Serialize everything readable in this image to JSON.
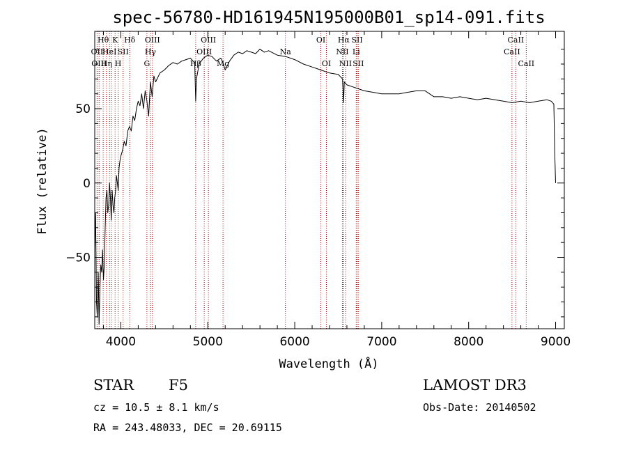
{
  "chart_data": {
    "type": "line",
    "title": "spec-56780-HD161945N195000B01_sp14-091.fits",
    "xlabel": "Wavelength (Å)",
    "ylabel": "Flux (relative)",
    "xlim": [
      3700,
      9100
    ],
    "ylim": [
      -98,
      102
    ],
    "xticks": [
      4000,
      5000,
      6000,
      7000,
      8000,
      9000
    ],
    "yticks": [
      -50,
      0,
      50
    ],
    "xtick_labels": [
      "4000",
      "5000",
      "6000",
      "7000",
      "8000",
      "9000"
    ],
    "ytick_labels": [
      "−50",
      "0",
      "50"
    ],
    "grid": false,
    "series": [
      {
        "name": "flux",
        "x": [
          3700,
          3710,
          3720,
          3730,
          3740,
          3750,
          3760,
          3770,
          3780,
          3790,
          3800,
          3810,
          3820,
          3830,
          3840,
          3850,
          3860,
          3870,
          3880,
          3890,
          3900,
          3910,
          3920,
          3930,
          3940,
          3950,
          3960,
          3970,
          3980,
          3990,
          4000,
          4020,
          4040,
          4060,
          4080,
          4100,
          4120,
          4140,
          4160,
          4180,
          4200,
          4220,
          4240,
          4260,
          4280,
          4300,
          4320,
          4340,
          4360,
          4380,
          4400,
          4450,
          4500,
          4550,
          4600,
          4650,
          4700,
          4750,
          4800,
          4830,
          4850,
          4861,
          4870,
          4900,
          4950,
          5000,
          5050,
          5100,
          5150,
          5180,
          5200,
          5250,
          5300,
          5350,
          5400,
          5450,
          5500,
          5550,
          5600,
          5650,
          5700,
          5800,
          5900,
          6000,
          6100,
          6200,
          6300,
          6400,
          6500,
          6550,
          6562,
          6570,
          6600,
          6700,
          6800,
          6900,
          7000,
          7100,
          7200,
          7300,
          7400,
          7500,
          7600,
          7700,
          7800,
          7900,
          8000,
          8100,
          8200,
          8300,
          8400,
          8500,
          8600,
          8700,
          8800,
          8900,
          8950,
          8980,
          8990,
          9000
        ],
        "y": [
          -45,
          -20,
          -80,
          -90,
          -60,
          -95,
          -70,
          -55,
          -60,
          -45,
          -65,
          -55,
          -30,
          -10,
          -5,
          -20,
          -15,
          0,
          -10,
          -25,
          -5,
          -15,
          -20,
          -10,
          -5,
          5,
          0,
          -5,
          10,
          15,
          18,
          22,
          28,
          25,
          35,
          38,
          35,
          45,
          42,
          50,
          55,
          52,
          60,
          50,
          62,
          55,
          45,
          68,
          58,
          72,
          68,
          74,
          76,
          79,
          81,
          80,
          82,
          83,
          84,
          82,
          81,
          55,
          70,
          80,
          84,
          86,
          85,
          82,
          84,
          80,
          76,
          82,
          86,
          88,
          87,
          89,
          88,
          87,
          90,
          88,
          89,
          86,
          85,
          83,
          80,
          78,
          76,
          74,
          73,
          70,
          54,
          68,
          66,
          64,
          62,
          61,
          60,
          60,
          60,
          61,
          62,
          62,
          58,
          58,
          57,
          58,
          57,
          56,
          57,
          56,
          55,
          54,
          55,
          54,
          55,
          56,
          55,
          53,
          20,
          0
        ],
        "color": "#000000"
      }
    ],
    "annotations": {
      "spectral_lines": [
        {
          "wavelength": 3727,
          "label": "OII",
          "row": 2
        },
        {
          "wavelength": 3750,
          "label": "OIII",
          "row": 3
        },
        {
          "wavelength": 3797,
          "label": "Hθ",
          "row": 1
        },
        {
          "wavelength": 3835,
          "label": "Hη",
          "row": 3
        },
        {
          "wavelength": 3870,
          "label": "HeI",
          "row": 2
        },
        {
          "wavelength": 3889,
          "label": "",
          "row": 0
        },
        {
          "wavelength": 3934,
          "label": "K",
          "row": 1
        },
        {
          "wavelength": 3969,
          "label": "H",
          "row": 3
        },
        {
          "wavelength": 4026,
          "label": "SII",
          "row": 2
        },
        {
          "wavelength": 4102,
          "label": "Hδ",
          "row": 1
        },
        {
          "wavelength": 4300,
          "label": "G",
          "row": 3
        },
        {
          "wavelength": 4340,
          "label": "Hγ",
          "row": 2
        },
        {
          "wavelength": 4363,
          "label": "OIII",
          "row": 1
        },
        {
          "wavelength": 4861,
          "label": "Hβ",
          "row": 3
        },
        {
          "wavelength": 4959,
          "label": "OIII",
          "row": 2
        },
        {
          "wavelength": 5007,
          "label": "OIII",
          "row": 1
        },
        {
          "wavelength": 5175,
          "label": "Mg",
          "row": 3
        },
        {
          "wavelength": 5893,
          "label": "Na",
          "row": 2
        },
        {
          "wavelength": 6300,
          "label": "OI",
          "row": 1
        },
        {
          "wavelength": 6364,
          "label": "OI",
          "row": 3
        },
        {
          "wavelength": 6548,
          "label": "NII",
          "row": 2
        },
        {
          "wavelength": 6563,
          "label": "Hα",
          "row": 1
        },
        {
          "wavelength": 6584,
          "label": "NII",
          "row": 3
        },
        {
          "wavelength": 6707,
          "label": "Li",
          "row": 2
        },
        {
          "wavelength": 6717,
          "label": "SII",
          "row": 1
        },
        {
          "wavelength": 6731,
          "label": "SII",
          "row": 3
        },
        {
          "wavelength": 8498,
          "label": "CaII",
          "row": 2
        },
        {
          "wavelength": 8542,
          "label": "CaII",
          "row": 1
        },
        {
          "wavelength": 8662,
          "label": "CaII",
          "row": 3
        }
      ],
      "line_color": "#a00000"
    }
  },
  "info": {
    "object_class": "STAR",
    "subclass": "F5",
    "survey": "LAMOST DR3",
    "redshift_text": "cz = 10.5 ± 8.1 km/s",
    "obs_date": "Obs-Date: 20140502",
    "coords": "RA = 243.48033, DEC =  20.69115"
  }
}
